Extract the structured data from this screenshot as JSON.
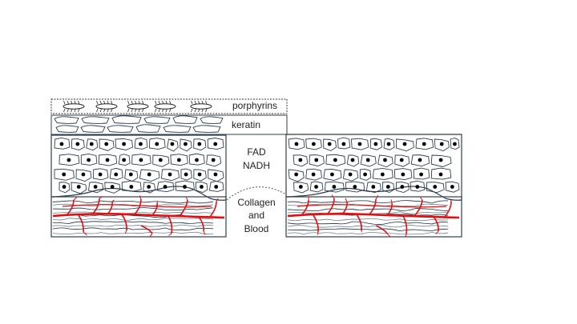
{
  "labels": {
    "porphyrins": "porphyrins",
    "keratin": "keratin",
    "fad": "FAD",
    "nadh": "NADH",
    "collagen": "Collagen",
    "and": "and",
    "blood": "Blood"
  },
  "colors": {
    "outline": "#2f3f4f",
    "vessel": "#e01010",
    "fiber_dark": "#1e2f45",
    "fiber_light": "#6d7e90",
    "cell_nucleus": "#000000",
    "background": "#ffffff"
  },
  "icons": {
    "bacteria": "bacterium-icon"
  }
}
